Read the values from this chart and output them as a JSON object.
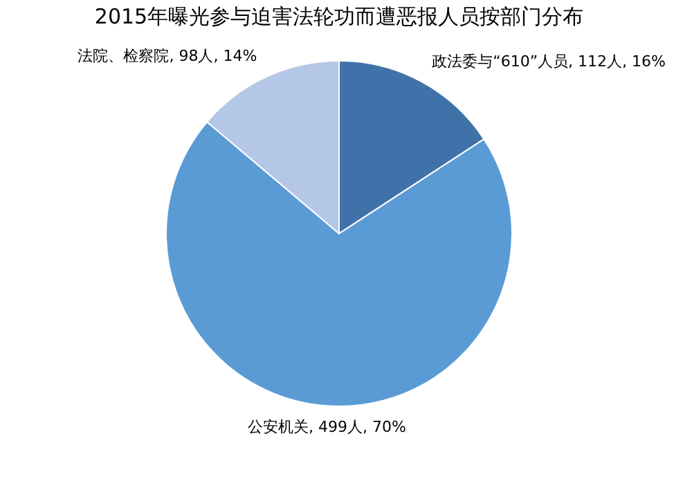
{
  "chart_data": {
    "type": "pie",
    "title": "2015年曝光参与迫害法轮功而遭恶报人员按部门分布",
    "categories": [
      "政法委与“610”人员",
      "公安机关",
      "法院、检察院"
    ],
    "values": [
      112,
      499,
      98
    ],
    "colors": [
      "#3f72a8",
      "#5b9bd5",
      "#b4c7e7"
    ],
    "value_labels": [
      "112人, 16%",
      "499人, 70%",
      "98人, 14%"
    ],
    "legend": false
  }
}
